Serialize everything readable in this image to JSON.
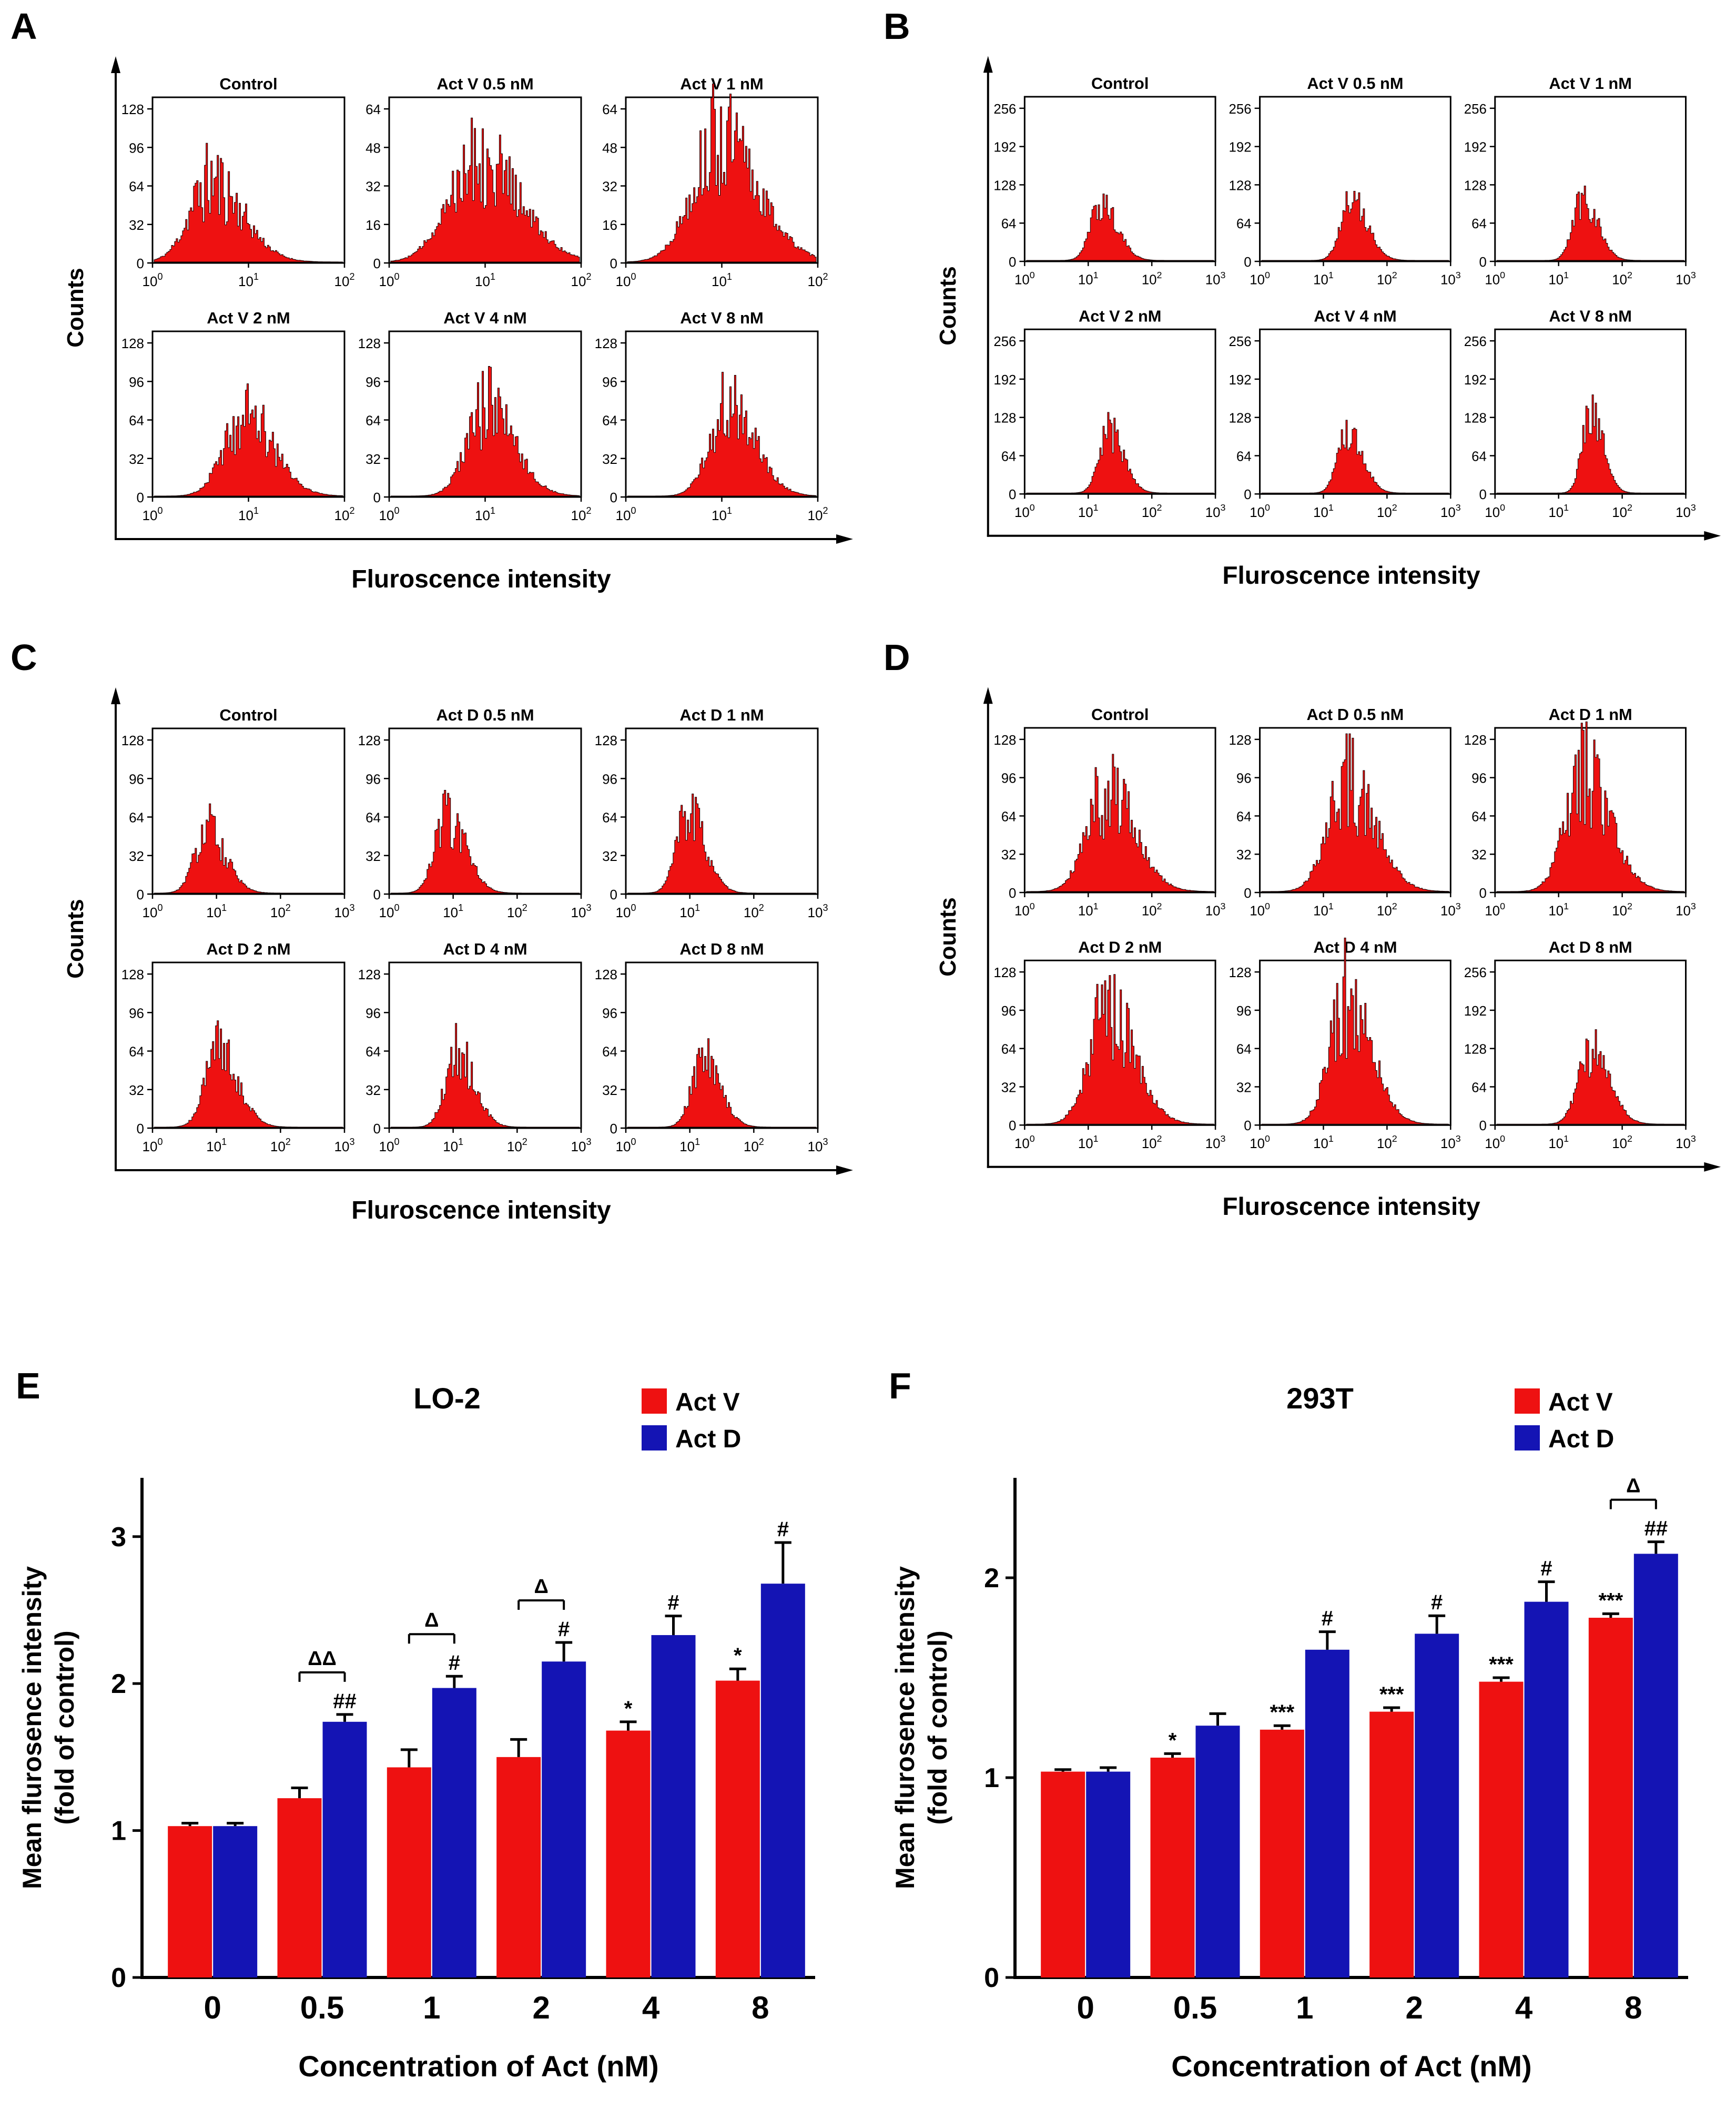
{
  "colors": {
    "red": "#ee1111",
    "blue": "#1414b4",
    "axis": "#000000"
  },
  "chart_data": [
    {
      "id": "A",
      "type": "histogram-grid",
      "panel_label": "A",
      "ylabel": "Counts",
      "xlabel": "Fluroscence intensity",
      "plots": [
        {
          "title": "Control",
          "yticks": [
            0,
            32,
            64,
            96,
            128
          ],
          "ymax": 128,
          "x_exponents": [
            0,
            1,
            2
          ],
          "peak_count": 68,
          "center": 0.3,
          "sigma": 0.13,
          "noise": 0.55,
          "seed": 11
        },
        {
          "title": "Act V 0.5 nM",
          "yticks": [
            0,
            16,
            32,
            48,
            64
          ],
          "ymax": 64,
          "x_exponents": [
            0,
            1,
            2
          ],
          "peak_count": 46,
          "center": 0.45,
          "sigma": 0.17,
          "noise": 0.5,
          "seed": 12
        },
        {
          "title": "Act V 1 nM",
          "yticks": [
            0,
            16,
            32,
            48,
            64
          ],
          "ymax": 64,
          "x_exponents": [
            0,
            1,
            2
          ],
          "peak_count": 52,
          "center": 0.48,
          "sigma": 0.16,
          "noise": 0.5,
          "seed": 13
        },
        {
          "title": "Act V 2 nM",
          "yticks": [
            0,
            32,
            64,
            96,
            128
          ],
          "ymax": 128,
          "x_exponents": [
            0,
            1,
            2
          ],
          "peak_count": 70,
          "center": 0.47,
          "sigma": 0.12,
          "noise": 0.5,
          "seed": 14
        },
        {
          "title": "Act V 4 nM",
          "yticks": [
            0,
            32,
            64,
            96,
            128
          ],
          "ymax": 128,
          "x_exponents": [
            0,
            1,
            2
          ],
          "peak_count": 76,
          "center": 0.5,
          "sigma": 0.115,
          "noise": 0.5,
          "seed": 15
        },
        {
          "title": "Act V 8 nM",
          "yticks": [
            0,
            32,
            64,
            96,
            128
          ],
          "ymax": 128,
          "x_exponents": [
            0,
            1,
            2
          ],
          "peak_count": 76,
          "center": 0.53,
          "sigma": 0.11,
          "noise": 0.5,
          "seed": 16
        }
      ]
    },
    {
      "id": "B",
      "type": "histogram-grid",
      "panel_label": "B",
      "ylabel": "Counts",
      "xlabel": "Fluroscence intensity",
      "plots": [
        {
          "title": "Control",
          "yticks": [
            0,
            64,
            128,
            192,
            256
          ],
          "ymax": 256,
          "x_exponents": [
            0,
            1,
            2,
            3
          ],
          "peak_count": 100,
          "center": 0.4,
          "sigma": 0.065,
          "noise": 0.35,
          "seed": 21
        },
        {
          "title": "Act V 0.5 nM",
          "yticks": [
            0,
            64,
            128,
            192,
            256
          ],
          "ymax": 256,
          "x_exponents": [
            0,
            1,
            2,
            3
          ],
          "peak_count": 105,
          "center": 0.48,
          "sigma": 0.065,
          "noise": 0.35,
          "seed": 22
        },
        {
          "title": "Act V 1 nM",
          "yticks": [
            0,
            64,
            128,
            192,
            256
          ],
          "ymax": 256,
          "x_exponents": [
            0,
            1,
            2,
            3
          ],
          "peak_count": 110,
          "center": 0.46,
          "sigma": 0.06,
          "noise": 0.35,
          "seed": 23
        },
        {
          "title": "Act V 2 nM",
          "yticks": [
            0,
            64,
            128,
            192,
            256
          ],
          "ymax": 256,
          "x_exponents": [
            0,
            1,
            2,
            3
          ],
          "peak_count": 105,
          "center": 0.44,
          "sigma": 0.06,
          "noise": 0.35,
          "seed": 24
        },
        {
          "title": "Act V 4 nM",
          "yticks": [
            0,
            64,
            128,
            192,
            256
          ],
          "ymax": 256,
          "x_exponents": [
            0,
            1,
            2,
            3
          ],
          "peak_count": 110,
          "center": 0.46,
          "sigma": 0.06,
          "noise": 0.35,
          "seed": 25
        },
        {
          "title": "Act V 8 nM",
          "yticks": [
            0,
            64,
            128,
            192,
            256
          ],
          "ymax": 256,
          "x_exponents": [
            0,
            1,
            2,
            3
          ],
          "peak_count": 150,
          "center": 0.5,
          "sigma": 0.05,
          "noise": 0.35,
          "seed": 26
        }
      ]
    },
    {
      "id": "C",
      "type": "histogram-grid",
      "panel_label": "C",
      "ylabel": "Counts",
      "xlabel": "Fluroscence intensity",
      "plots": [
        {
          "title": "Control",
          "yticks": [
            0,
            32,
            64,
            96,
            128
          ],
          "ymax": 128,
          "x_exponents": [
            0,
            1,
            2,
            3
          ],
          "peak_count": 54,
          "center": 0.28,
          "sigma": 0.075,
          "noise": 0.45,
          "seed": 31
        },
        {
          "title": "Act D 0.5 nM",
          "yticks": [
            0,
            32,
            64,
            96,
            128
          ],
          "ymax": 128,
          "x_exponents": [
            0,
            1,
            2,
            3
          ],
          "peak_count": 66,
          "center": 0.3,
          "sigma": 0.075,
          "noise": 0.45,
          "seed": 32
        },
        {
          "title": "Act D 1 nM",
          "yticks": [
            0,
            32,
            64,
            96,
            128
          ],
          "ymax": 128,
          "x_exponents": [
            0,
            1,
            2,
            3
          ],
          "peak_count": 68,
          "center": 0.32,
          "sigma": 0.07,
          "noise": 0.45,
          "seed": 33
        },
        {
          "title": "Act D 2 nM",
          "yticks": [
            0,
            32,
            64,
            96,
            128
          ],
          "ymax": 128,
          "x_exponents": [
            0,
            1,
            2,
            3
          ],
          "peak_count": 64,
          "center": 0.34,
          "sigma": 0.08,
          "noise": 0.45,
          "seed": 34
        },
        {
          "title": "Act D 4 nM",
          "yticks": [
            0,
            32,
            64,
            96,
            128
          ],
          "ymax": 128,
          "x_exponents": [
            0,
            1,
            2,
            3
          ],
          "peak_count": 64,
          "center": 0.35,
          "sigma": 0.07,
          "noise": 0.45,
          "seed": 35
        },
        {
          "title": "Act D 8 nM",
          "yticks": [
            0,
            32,
            64,
            96,
            128
          ],
          "ymax": 128,
          "x_exponents": [
            0,
            1,
            2,
            3
          ],
          "peak_count": 56,
          "center": 0.4,
          "sigma": 0.07,
          "noise": 0.45,
          "seed": 36
        }
      ]
    },
    {
      "id": "D",
      "type": "histogram-grid",
      "panel_label": "D",
      "ylabel": "Counts",
      "xlabel": "Fluroscence intensity",
      "plots": [
        {
          "title": "Control",
          "yticks": [
            0,
            32,
            64,
            96,
            128
          ],
          "ymax": 128,
          "x_exponents": [
            0,
            1,
            2,
            3
          ],
          "peak_count": 90,
          "center": 0.42,
          "sigma": 0.115,
          "noise": 0.5,
          "seed": 41
        },
        {
          "title": "Act D 0.5 nM",
          "yticks": [
            0,
            32,
            64,
            96,
            128
          ],
          "ymax": 128,
          "x_exponents": [
            0,
            1,
            2,
            3
          ],
          "peak_count": 95,
          "center": 0.45,
          "sigma": 0.115,
          "noise": 0.5,
          "seed": 42
        },
        {
          "title": "Act D 1 nM",
          "yticks": [
            0,
            32,
            64,
            96,
            128
          ],
          "ymax": 128,
          "x_exponents": [
            0,
            1,
            2,
            3
          ],
          "peak_count": 100,
          "center": 0.46,
          "sigma": 0.11,
          "noise": 0.5,
          "seed": 43
        },
        {
          "title": "Act D 2 nM",
          "yticks": [
            0,
            32,
            64,
            96,
            128
          ],
          "ymax": 128,
          "x_exponents": [
            0,
            1,
            2,
            3
          ],
          "peak_count": 100,
          "center": 0.43,
          "sigma": 0.11,
          "noise": 0.5,
          "seed": 44
        },
        {
          "title": "Act D 4 nM",
          "yticks": [
            0,
            32,
            64,
            96,
            128
          ],
          "ymax": 128,
          "x_exponents": [
            0,
            1,
            2,
            3
          ],
          "peak_count": 112,
          "center": 0.45,
          "sigma": 0.1,
          "noise": 0.5,
          "seed": 45
        },
        {
          "title": "Act D 8 nM",
          "yticks": [
            0,
            64,
            128,
            192,
            256
          ],
          "ymax": 256,
          "x_exponents": [
            0,
            1,
            2,
            3
          ],
          "peak_count": 130,
          "center": 0.5,
          "sigma": 0.075,
          "noise": 0.4,
          "seed": 46
        }
      ]
    },
    {
      "id": "E",
      "type": "bar",
      "panel_label": "E",
      "title": "LO-2",
      "xlabel": "Concentration of Act (nM)",
      "ylabel_lines": [
        "Mean flurosence intensity",
        "(fold of control)"
      ],
      "categories": [
        "0",
        "0.5",
        "1",
        "2",
        "4",
        "8"
      ],
      "yticks": [
        0,
        1,
        2,
        3
      ],
      "ylim": [
        0,
        3.4
      ],
      "legend_position": "top-right",
      "series": [
        {
          "name": "Act V",
          "color": "#ee1111",
          "values": [
            1.03,
            1.22,
            1.43,
            1.5,
            1.68,
            2.02
          ],
          "errors": [
            0.02,
            0.07,
            0.12,
            0.12,
            0.06,
            0.08
          ],
          "sig": [
            "",
            "",
            "",
            "",
            "*",
            "*"
          ]
        },
        {
          "name": "Act D",
          "color": "#1414b4",
          "values": [
            1.03,
            1.74,
            1.97,
            2.15,
            2.33,
            2.68
          ],
          "errors": [
            0.02,
            0.05,
            0.08,
            0.13,
            0.13,
            0.28
          ],
          "sig": [
            "",
            "##",
            "#",
            "#",
            "#",
            "#"
          ]
        }
      ],
      "brackets": [
        {
          "category_index": 1,
          "label": "ΔΔ"
        },
        {
          "category_index": 2,
          "label": "Δ"
        },
        {
          "category_index": 3,
          "label": "Δ"
        }
      ]
    },
    {
      "id": "F",
      "type": "bar",
      "panel_label": "F",
      "title": "293T",
      "xlabel": "Concentration of Act (nM)",
      "ylabel_lines": [
        "Mean flurosence intensity",
        "(fold of control)"
      ],
      "categories": [
        "0",
        "0.5",
        "1",
        "2",
        "4",
        "8"
      ],
      "yticks": [
        0,
        1,
        2
      ],
      "ylim": [
        0,
        2.5
      ],
      "legend_position": "top-right",
      "series": [
        {
          "name": "Act V",
          "color": "#ee1111",
          "values": [
            1.03,
            1.1,
            1.24,
            1.33,
            1.48,
            1.8
          ],
          "errors": [
            0.01,
            0.02,
            0.02,
            0.02,
            0.02,
            0.02
          ],
          "sig": [
            "",
            "*",
            "***",
            "***",
            "***",
            "***"
          ]
        },
        {
          "name": "Act D",
          "color": "#1414b4",
          "values": [
            1.03,
            1.26,
            1.64,
            1.72,
            1.88,
            2.12
          ],
          "errors": [
            0.02,
            0.06,
            0.09,
            0.09,
            0.1,
            0.06
          ],
          "sig": [
            "",
            "",
            "#",
            "#",
            "#",
            "##"
          ]
        }
      ],
      "brackets": [
        {
          "category_index": 5,
          "label": "Δ"
        }
      ]
    }
  ]
}
